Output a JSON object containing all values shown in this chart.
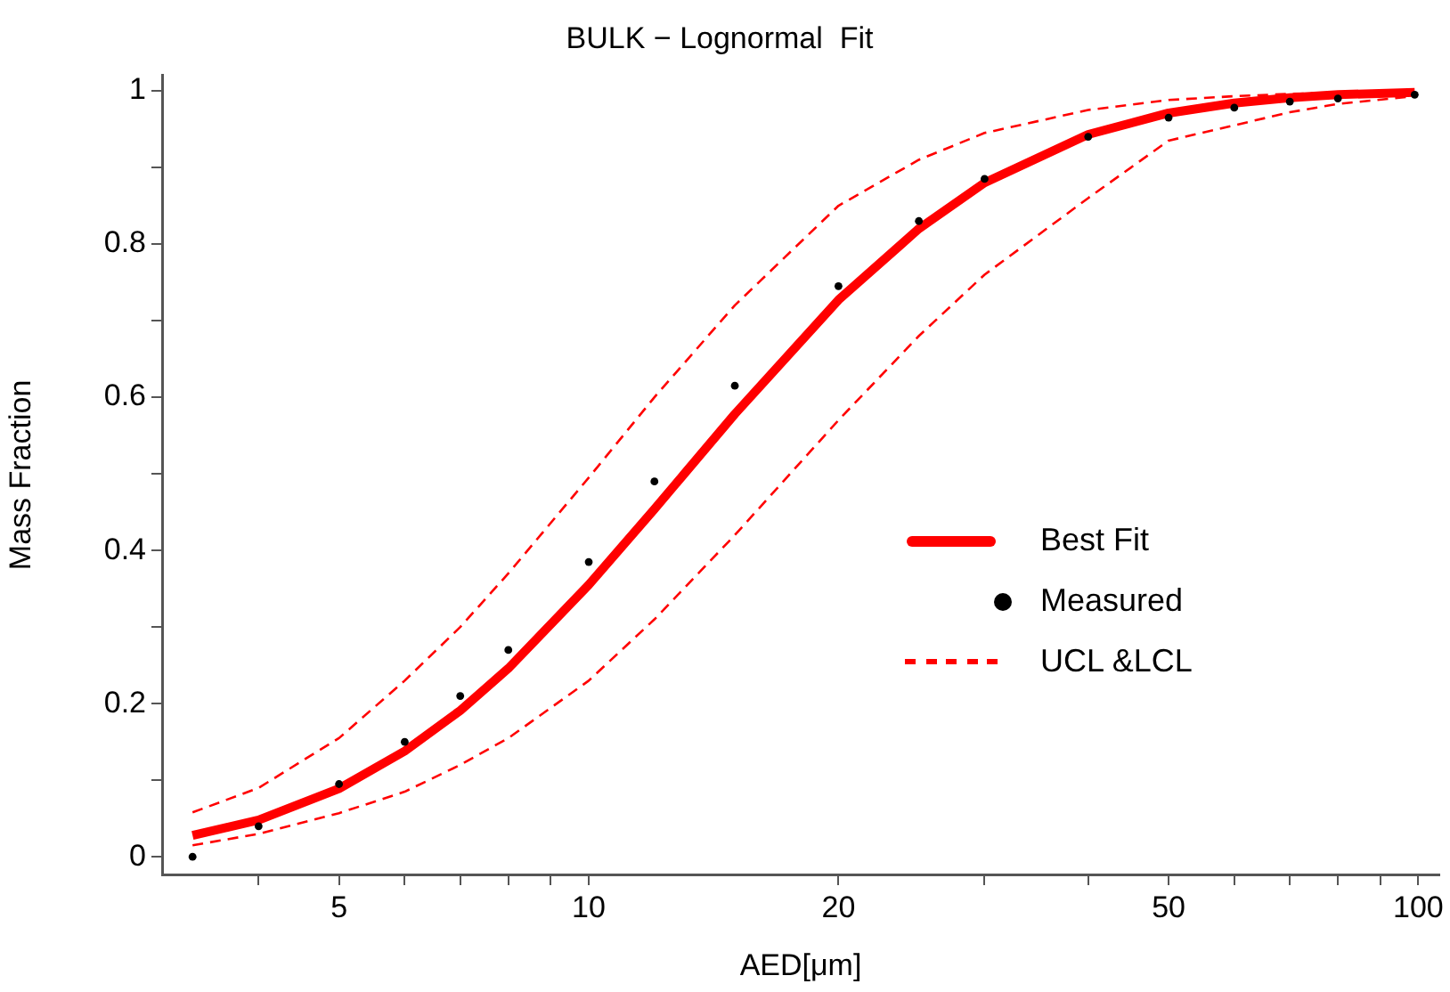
{
  "chart_data": {
    "type": "line",
    "title": "BULK − Lognormal  Fit",
    "xlabel": "AED[μm]",
    "ylabel": "Mass Fraction",
    "log": "x",
    "xlim": [
      3.06,
      106
    ],
    "ylim": [
      -0.023,
      1.02
    ],
    "xticks": [
      {
        "value": 4,
        "label": null
      },
      5,
      {
        "value": 6,
        "label": null
      },
      {
        "value": 7,
        "label": null
      },
      {
        "value": 8,
        "label": null
      },
      {
        "value": 9,
        "label": null
      },
      10,
      20,
      {
        "value": 30,
        "label": null
      },
      {
        "value": 40,
        "label": null
      },
      50,
      {
        "value": 60,
        "label": null
      },
      {
        "value": 70,
        "label": null
      },
      {
        "value": 80,
        "label": null
      },
      {
        "value": 90,
        "label": null
      },
      100
    ],
    "yticks": [
      0,
      {
        "value": 0.1,
        "label": null
      },
      0.2,
      {
        "value": 0.3,
        "label": null
      },
      0.4,
      {
        "value": 0.5,
        "label": null
      },
      0.6,
      {
        "value": 0.7,
        "label": null
      },
      0.8,
      {
        "value": 0.9,
        "label": null
      },
      1
    ],
    "x": [
      3.33,
      4,
      5,
      6,
      7,
      8,
      10,
      12,
      15,
      20,
      25,
      30,
      40,
      50,
      60,
      70,
      80,
      99
    ],
    "grid": false,
    "legend": "right",
    "series": [
      {
        "name": "Best Fit",
        "color": "#ff0000",
        "line_style": "solid",
        "marker": "none",
        "values": [
          0.028,
          0.048,
          0.089,
          0.138,
          0.191,
          0.246,
          0.355,
          0.454,
          0.578,
          0.727,
          0.82,
          0.88,
          0.943,
          0.971,
          0.984,
          0.991,
          0.995,
          0.998
        ]
      },
      {
        "name": "Measured",
        "type": "scatter",
        "color": "#000000",
        "marker": "circle",
        "values": [
          0.0,
          0.04,
          0.095,
          0.15,
          0.21,
          0.27,
          0.385,
          0.49,
          0.615,
          0.745,
          0.83,
          0.885,
          0.94,
          0.965,
          0.978,
          0.986,
          0.99,
          0.995
        ]
      },
      {
        "name": "UCL &LCL",
        "color": "#ff0000",
        "line_style": "dashed",
        "marker": "none",
        "values": [
          0.058,
          0.09,
          0.155,
          0.23,
          0.3,
          0.37,
          0.495,
          0.6,
          0.72,
          0.85,
          0.91,
          0.945,
          0.975,
          0.988,
          0.993,
          0.996,
          0.998,
          0.999
        ]
      },
      {
        "color": "#ff0000",
        "line_style": "dashed",
        "marker": "none",
        "values": [
          0.015,
          0.03,
          0.057,
          0.085,
          0.12,
          0.155,
          0.23,
          0.31,
          0.42,
          0.57,
          0.68,
          0.76,
          0.86,
          0.935,
          0.955,
          0.972,
          0.983,
          0.993
        ]
      }
    ]
  }
}
